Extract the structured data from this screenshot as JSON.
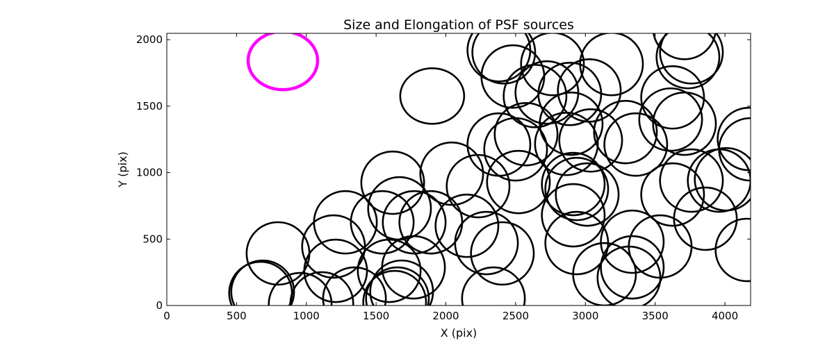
{
  "chart_data": {
    "type": "scatter",
    "title": "Size and Elongation of PSF sources",
    "xlabel": "X (pix)",
    "ylabel": "Y (pix)",
    "xlim": [
      0,
      4184
    ],
    "ylim": [
      0,
      2048
    ],
    "xticks": [
      0,
      500,
      1000,
      1500,
      2000,
      2500,
      3000,
      3500,
      4000
    ],
    "yticks": [
      0,
      500,
      1000,
      1500,
      2000
    ],
    "xtick_labels": [
      "0",
      "500",
      "1000",
      "1500",
      "2000",
      "2500",
      "3000",
      "3500",
      "4000"
    ],
    "ytick_labels": [
      "0",
      "500",
      "1000",
      "1500",
      "2000"
    ],
    "grid": false,
    "reference_ellipse": {
      "x": 832,
      "y": 1843,
      "width": 498,
      "height": 438,
      "color": "#ff00ff"
    },
    "ellipse_color": "#000000",
    "ellipses": [
      [
        687,
        104,
        450,
        470
      ],
      [
        672,
        94,
        450,
        470
      ],
      [
        797,
        392,
        450,
        470
      ],
      [
        956,
        10,
        450,
        470
      ],
      [
        1195,
        444,
        450,
        470
      ],
      [
        1210,
        261,
        450,
        470
      ],
      [
        1280,
        626,
        450,
        470
      ],
      [
        1111,
        16,
        450,
        470
      ],
      [
        1345,
        52,
        450,
        470
      ],
      [
        1544,
        626,
        450,
        470
      ],
      [
        1594,
        261,
        450,
        470
      ],
      [
        1619,
        924,
        450,
        470
      ],
      [
        1668,
        731,
        450,
        470
      ],
      [
        1768,
        287,
        450,
        470
      ],
      [
        1683,
        104,
        450,
        470
      ],
      [
        1653,
        52,
        450,
        470
      ],
      [
        1633,
        26,
        450,
        470
      ],
      [
        1892,
        626,
        450,
        470
      ],
      [
        1773,
        626,
        450,
        470
      ],
      [
        1902,
        1576,
        458,
        418
      ],
      [
        2042,
        992,
        450,
        470
      ],
      [
        2151,
        600,
        450,
        470
      ],
      [
        2231,
        898,
        450,
        470
      ],
      [
        2291,
        470,
        450,
        470
      ],
      [
        2341,
        52,
        450,
        470
      ],
      [
        2380,
        1211,
        450,
        470
      ],
      [
        2405,
        392,
        450,
        470
      ],
      [
        2380,
        1921,
        450,
        470
      ],
      [
        2415,
        1905,
        450,
        470
      ],
      [
        2480,
        1723,
        450,
        470
      ],
      [
        2520,
        929,
        450,
        470
      ],
      [
        2500,
        1175,
        450,
        470
      ],
      [
        2575,
        1289,
        450,
        470
      ],
      [
        2764,
        1817,
        450,
        470
      ],
      [
        2639,
        1576,
        450,
        470
      ],
      [
        2724,
        1603,
        450,
        470
      ],
      [
        2938,
        470,
        450,
        470
      ],
      [
        2913,
        679,
        450,
        470
      ],
      [
        2913,
        914,
        450,
        470
      ],
      [
        2898,
        1368,
        450,
        470
      ],
      [
        2864,
        1216,
        450,
        470
      ],
      [
        2888,
        1592,
        450,
        470
      ],
      [
        3028,
        1618,
        450,
        470
      ],
      [
        3187,
        1817,
        450,
        470
      ],
      [
        3038,
        1242,
        450,
        470
      ],
      [
        3013,
        835,
        450,
        470
      ],
      [
        2938,
        877,
        450,
        470
      ],
      [
        3137,
        235,
        450,
        470
      ],
      [
        3312,
        209,
        450,
        470
      ],
      [
        3336,
        287,
        450,
        470
      ],
      [
        3336,
        480,
        450,
        470
      ],
      [
        3287,
        1305,
        450,
        470
      ],
      [
        3361,
        1211,
        450,
        470
      ],
      [
        3536,
        444,
        450,
        470
      ],
      [
        3625,
        1566,
        450,
        470
      ],
      [
        3611,
        1399,
        450,
        470
      ],
      [
        3710,
        1368,
        450,
        470
      ],
      [
        3760,
        1905,
        450,
        470
      ],
      [
        3735,
        1869,
        450,
        470
      ],
      [
        3710,
        2088,
        450,
        470
      ],
      [
        3625,
        835,
        450,
        470
      ],
      [
        3760,
        940,
        450,
        470
      ],
      [
        3860,
        653,
        450,
        470
      ],
      [
        3959,
        940,
        450,
        470
      ],
      [
        4009,
        950,
        450,
        470
      ],
      [
        4158,
        418,
        450,
        470
      ],
      [
        4173,
        1253,
        450,
        470
      ],
      [
        4183,
        1175,
        450,
        470
      ]
    ]
  }
}
